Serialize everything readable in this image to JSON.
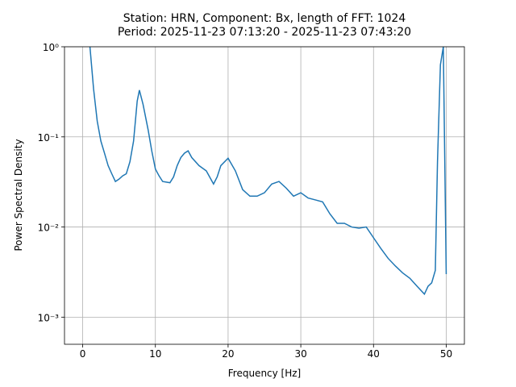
{
  "chart_data": {
    "type": "line",
    "title": "Station: HRN, Component: Bx, length of FFT: 1024",
    "subtitle": "Period: 2025-11-23 07:13:20 - 2025-11-23 07:43:20",
    "x_label": "Frequency [Hz]",
    "y_label": "Power Spectral Density",
    "log_y": true,
    "grid": true,
    "xlim": [
      -2.5,
      52.5
    ],
    "ylim": [
      0.0005,
      1
    ],
    "xticks": [
      0,
      10,
      20,
      30,
      40,
      50
    ],
    "yticks": [
      {
        "value": 0.001,
        "label": "10⁻³"
      },
      {
        "value": 0.01,
        "label": "10⁻²"
      },
      {
        "value": 0.1,
        "label": "10⁻¹"
      },
      {
        "value": 1,
        "label": "10⁰"
      }
    ],
    "x": [
      1.0,
      1.5,
      2.0,
      2.5,
      3.0,
      3.5,
      4.0,
      4.5,
      5.0,
      5.5,
      6.0,
      6.5,
      7.0,
      7.5,
      7.8,
      8.3,
      9.0,
      9.5,
      10.0,
      10.5,
      11.0,
      12.0,
      12.5,
      13.0,
      13.5,
      14.0,
      14.5,
      15.0,
      16.0,
      17.0,
      18.0,
      18.5,
      19.0,
      20.0,
      21.0,
      22.0,
      23.0,
      24.0,
      25.0,
      26.0,
      27.0,
      28.0,
      29.0,
      30.0,
      31.0,
      32.0,
      33.0,
      34.0,
      35.0,
      36.0,
      37.0,
      38.0,
      39.0,
      40.0,
      41.0,
      42.0,
      43.0,
      44.0,
      45.0,
      46.0,
      47.0,
      47.5,
      48.0,
      48.5,
      48.8,
      49.2,
      49.6,
      50.0
    ],
    "series": [
      {
        "color": "#1f77b4",
        "values": [
          1.0,
          0.34,
          0.15,
          0.09,
          0.066,
          0.048,
          0.039,
          0.032,
          0.034,
          0.037,
          0.039,
          0.053,
          0.09,
          0.25,
          0.33,
          0.23,
          0.12,
          0.07,
          0.044,
          0.037,
          0.032,
          0.031,
          0.036,
          0.048,
          0.059,
          0.066,
          0.07,
          0.059,
          0.048,
          0.042,
          0.03,
          0.036,
          0.048,
          0.058,
          0.042,
          0.026,
          0.022,
          0.022,
          0.024,
          0.03,
          0.032,
          0.027,
          0.022,
          0.024,
          0.021,
          0.02,
          0.019,
          0.014,
          0.011,
          0.011,
          0.01,
          0.0097,
          0.01,
          0.0076,
          0.0058,
          0.0045,
          0.0037,
          0.0031,
          0.0027,
          0.0022,
          0.0018,
          0.0022,
          0.0024,
          0.0033,
          0.053,
          0.63,
          1.0,
          0.003
        ]
      }
    ]
  }
}
